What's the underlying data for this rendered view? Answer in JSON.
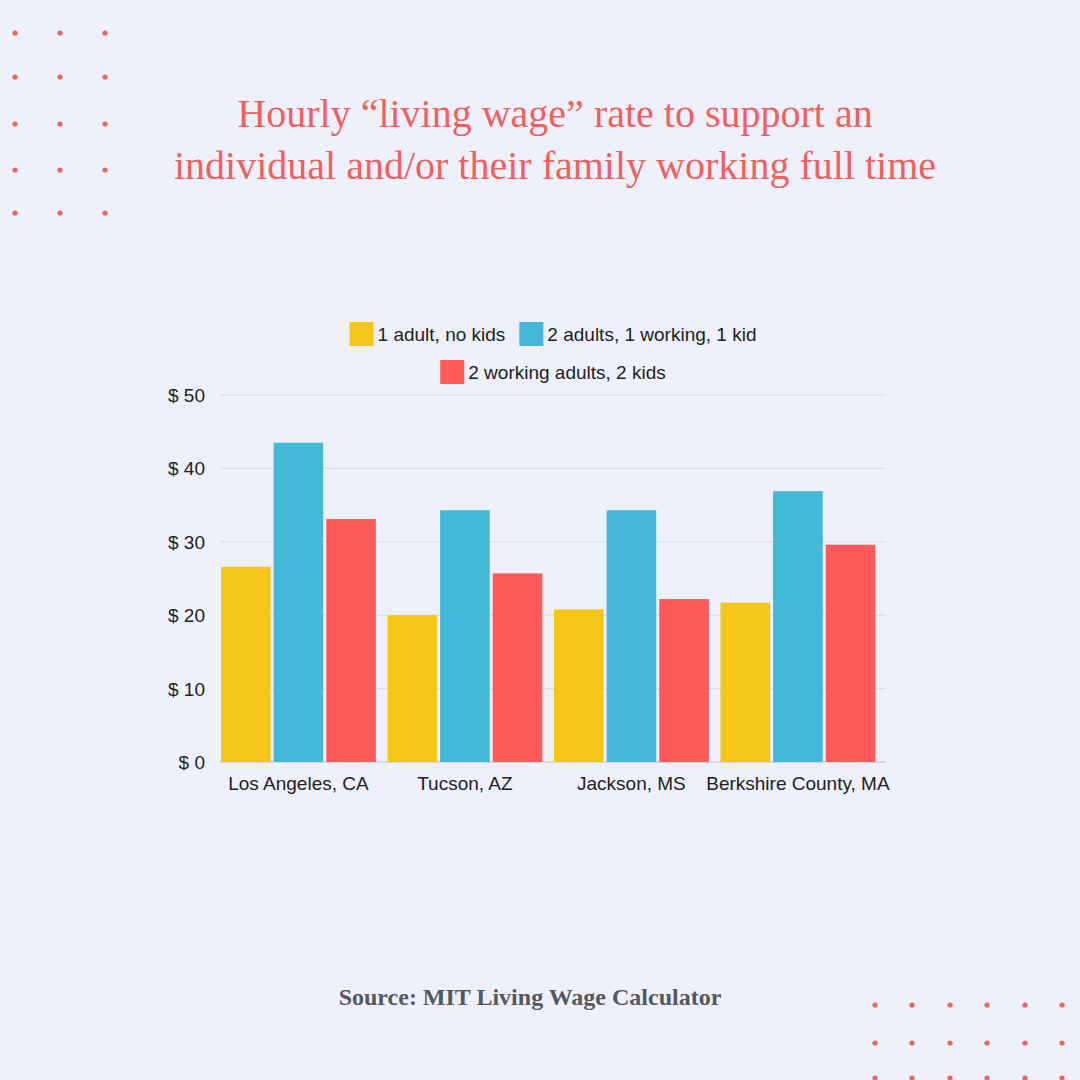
{
  "chart_data": {
    "type": "bar",
    "title": "Hourly “living wage” rate to support an individual and/or their family working full time",
    "source": "Source: MIT Living Wage Calculator",
    "categories": [
      "Los Angeles, CA",
      "Tucson, AZ",
      "Jackson, MS",
      "Berkshire County, MA"
    ],
    "series": [
      {
        "name": "1 adult, no kids",
        "color": "#f5c518",
        "values": [
          26.6,
          20.0,
          20.8,
          21.7
        ]
      },
      {
        "name": "2 adults, 1 working, 1 kid",
        "color": "#44b8d8",
        "values": [
          43.5,
          34.3,
          34.3,
          36.9
        ]
      },
      {
        "name": "2 working adults, 2 kids",
        "color": "#ff5a5a",
        "values": [
          33.1,
          25.7,
          22.2,
          29.6
        ]
      }
    ],
    "ylim": [
      0,
      50
    ],
    "yticks": [
      {
        "value": 0,
        "label": "$ 0"
      },
      {
        "value": 10,
        "label": "$ 10"
      },
      {
        "value": 20,
        "label": "$ 20"
      },
      {
        "value": 30,
        "label": "$ 30"
      },
      {
        "value": 40,
        "label": "$ 40"
      },
      {
        "value": 50,
        "label": "$ 50"
      }
    ],
    "grid": true,
    "legend": "top"
  }
}
